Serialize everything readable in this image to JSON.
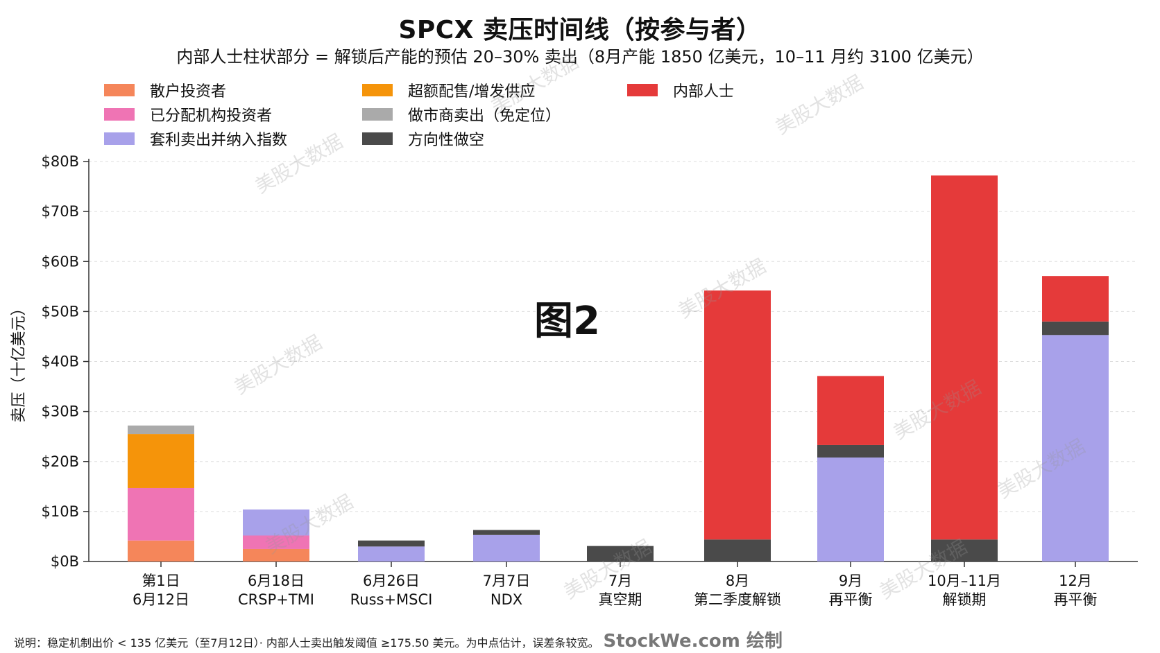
{
  "title": "SPCX 卖压时间线（按参与者）",
  "subtitle": "内部人士柱状部分 = 解锁后产能的预估 20–30% 卖出（8月产能 1850 亿美元，10–11 月约 3100 亿美元）",
  "badge": "图2",
  "watermark": "美股大数据",
  "note": "说明：稳定机制出价 < 135 亿美元（至7月12日）· 内部人士卖出触发阈值 ≥175.50 美元。为中点估计，误差条较宽。",
  "brand": "StockWe.com 绘制",
  "chart_data": {
    "type": "bar",
    "stacked": true,
    "title": "SPCX 卖压时间线（按参与者）",
    "ylabel": "卖压（十亿美元）",
    "ylim": [
      0,
      80
    ],
    "yticks": [
      0,
      10,
      20,
      30,
      40,
      50,
      60,
      70,
      80
    ],
    "ytick_labels": [
      "$0B",
      "$10B",
      "$20B",
      "$30B",
      "$40B",
      "$50B",
      "$60B",
      "$70B",
      "$80B"
    ],
    "grid": true,
    "legend_position": "top",
    "categories": [
      [
        "第1日",
        "6月12日"
      ],
      [
        "6月18日",
        "CRSP+TMI"
      ],
      [
        "6月26日",
        "Russ+MSCI"
      ],
      [
        "7月7日",
        "NDX"
      ],
      [
        "7月",
        "真空期"
      ],
      [
        "8月",
        "第二季度解锁"
      ],
      [
        "9月",
        "再平衡"
      ],
      [
        "10月–11月",
        "解锁期"
      ],
      [
        "12月",
        "再平衡"
      ]
    ],
    "series": [
      {
        "name": "散户投资者",
        "color": "#f5865a",
        "values": [
          4.2,
          2.5,
          0,
          0,
          0,
          0,
          0,
          0,
          0
        ]
      },
      {
        "name": "已分配机构投资者",
        "color": "#ef74b4",
        "values": [
          10.5,
          2.7,
          0,
          0,
          0,
          0,
          0,
          0,
          0
        ]
      },
      {
        "name": "套利卖出并纳入指数",
        "color": "#a8a1ea",
        "values": [
          0,
          5.2,
          3.0,
          5.3,
          0,
          0,
          20.8,
          0,
          45.3
        ]
      },
      {
        "name": "超额配售/增发供应",
        "color": "#f5940a",
        "values": [
          10.8,
          0,
          0,
          0,
          0,
          0,
          0,
          0,
          0
        ]
      },
      {
        "name": "做市商卖出（免定位）",
        "color": "#aaaaaa",
        "values": [
          1.7,
          0,
          0,
          0,
          0,
          0,
          0,
          0,
          0
        ]
      },
      {
        "name": "方向性做空",
        "color": "#4a4a4a",
        "values": [
          0,
          0,
          1.2,
          1.0,
          3.1,
          4.4,
          2.5,
          4.4,
          2.7
        ]
      },
      {
        "name": "内部人士",
        "color": "#e53a3a",
        "values": [
          0,
          0,
          0,
          0,
          0,
          49.8,
          13.8,
          72.8,
          9.1
        ]
      }
    ]
  }
}
